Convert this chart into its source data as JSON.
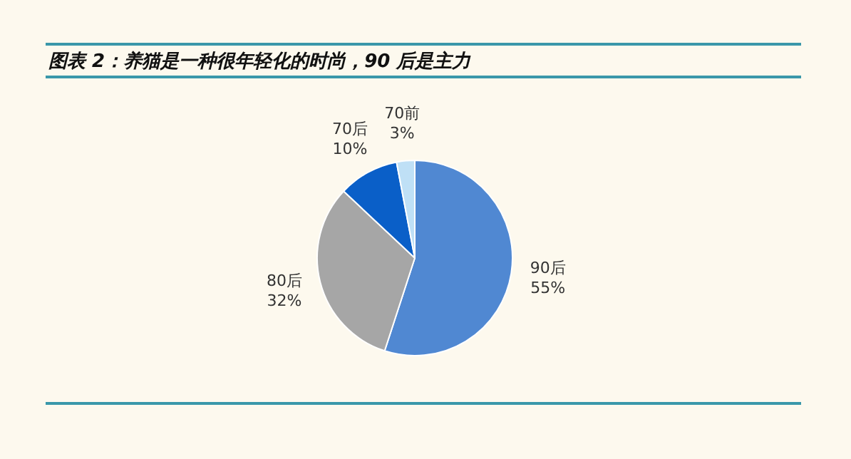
{
  "chart_data": {
    "type": "pie",
    "title": "图表 2：养猫是一种很年轻化的时尚，90 后是主力",
    "categories": [
      "90后",
      "80后",
      "70后",
      "70前"
    ],
    "values": [
      55,
      32,
      10,
      3
    ],
    "value_labels": [
      "55%",
      "32%",
      "10%",
      "3%"
    ],
    "colors": [
      "#5088d2",
      "#a6a6a6",
      "#0a5fc8",
      "#bfe0f6"
    ],
    "legend": false
  }
}
